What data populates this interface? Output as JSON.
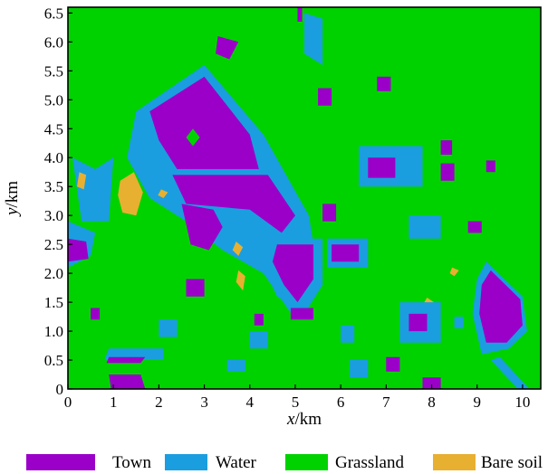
{
  "chart_data": {
    "type": "heatmap",
    "title": "",
    "x_axis": {
      "label_var": "x",
      "label_unit": "/km",
      "range": [
        0,
        10.4
      ],
      "ticks": [
        0,
        1,
        2,
        3,
        4,
        5,
        6,
        7,
        8,
        9,
        10
      ]
    },
    "y_axis": {
      "label_var": "y",
      "label_unit": "/km",
      "range": [
        0,
        6.6
      ],
      "ticks": [
        0,
        0.5,
        1.0,
        1.5,
        2.0,
        2.5,
        3.0,
        3.5,
        4.0,
        4.5,
        5.0,
        5.5,
        6.0,
        6.5
      ],
      "tick_labels": [
        "0",
        "0.5",
        "1.0",
        "1.5",
        "2.0",
        "2.5",
        "3.0",
        "3.5",
        "4.0",
        "4.5",
        "5.0",
        "5.5",
        "6.0",
        "6.5"
      ]
    },
    "background_class": "Grassland",
    "classes": [
      {
        "name": "Town",
        "color": "#9b00c8"
      },
      {
        "name": "Water",
        "color": "#1a9ee0"
      },
      {
        "name": "Grassland",
        "color": "#00d200"
      },
      {
        "name": "Bare soil",
        "color": "#e8b030"
      }
    ],
    "legend_position": "bottom",
    "regions": [
      {
        "class": "Water",
        "points": [
          [
            1.5,
            4.8
          ],
          [
            3.0,
            5.6
          ],
          [
            4.3,
            4.4
          ],
          [
            5.3,
            3.0
          ],
          [
            5.5,
            2.0
          ],
          [
            5.0,
            1.2
          ],
          [
            4.3,
            2.0
          ],
          [
            3.4,
            2.4
          ],
          [
            2.6,
            2.9
          ],
          [
            1.8,
            3.3
          ],
          [
            1.3,
            4.0
          ]
        ]
      },
      {
        "class": "Town",
        "points": [
          [
            1.8,
            4.8
          ],
          [
            3.0,
            5.4
          ],
          [
            4.0,
            4.4
          ],
          [
            4.2,
            3.8
          ],
          [
            2.4,
            3.8
          ],
          [
            2.0,
            4.3
          ]
        ]
      },
      {
        "class": "Town",
        "points": [
          [
            2.3,
            3.7
          ],
          [
            4.4,
            3.7
          ],
          [
            5.0,
            3.0
          ],
          [
            4.7,
            2.7
          ],
          [
            4.0,
            3.1
          ],
          [
            2.6,
            3.2
          ]
        ]
      },
      {
        "class": "Grassland",
        "points": [
          [
            2.75,
            4.5
          ],
          [
            2.9,
            4.35
          ],
          [
            2.75,
            4.2
          ],
          [
            2.6,
            4.35
          ]
        ]
      },
      {
        "class": "Town",
        "points": [
          [
            2.5,
            3.2
          ],
          [
            3.2,
            3.1
          ],
          [
            3.4,
            2.8
          ],
          [
            3.1,
            2.4
          ],
          [
            2.7,
            2.5
          ]
        ]
      },
      {
        "class": "Water",
        "points": [
          [
            4.4,
            2.6
          ],
          [
            5.6,
            2.6
          ],
          [
            5.6,
            1.8
          ],
          [
            5.2,
            1.3
          ],
          [
            4.6,
            1.6
          ],
          [
            4.3,
            2.1
          ]
        ]
      },
      {
        "class": "Town",
        "points": [
          [
            4.6,
            2.5
          ],
          [
            5.4,
            2.5
          ],
          [
            5.4,
            1.9
          ],
          [
            5.05,
            1.5
          ],
          [
            4.75,
            1.8
          ],
          [
            4.5,
            2.2
          ]
        ]
      },
      {
        "class": "Water",
        "points": [
          [
            9.2,
            2.2
          ],
          [
            10.0,
            1.6
          ],
          [
            10.1,
            1.0
          ],
          [
            9.7,
            0.7
          ],
          [
            9.1,
            0.6
          ],
          [
            8.9,
            1.3
          ],
          [
            9.0,
            1.9
          ]
        ]
      },
      {
        "class": "Town",
        "points": [
          [
            9.3,
            2.05
          ],
          [
            9.95,
            1.55
          ],
          [
            10.0,
            1.1
          ],
          [
            9.65,
            0.8
          ],
          [
            9.2,
            0.8
          ],
          [
            9.05,
            1.3
          ],
          [
            9.1,
            1.8
          ]
        ]
      },
      {
        "class": "Water",
        "points": [
          [
            9.3,
            0.5
          ],
          [
            9.9,
            0.0
          ],
          [
            10.15,
            0.0
          ],
          [
            9.5,
            0.55
          ]
        ]
      },
      {
        "class": "Water",
        "points": [
          [
            0.0,
            2.9
          ],
          [
            0.6,
            2.7
          ],
          [
            0.5,
            2.3
          ],
          [
            0.0,
            2.1
          ]
        ]
      },
      {
        "class": "Town",
        "points": [
          [
            0.0,
            2.6
          ],
          [
            0.4,
            2.55
          ],
          [
            0.45,
            2.25
          ],
          [
            0.0,
            2.2
          ]
        ]
      },
      {
        "class": "Water",
        "points": [
          [
            0.9,
            0.7
          ],
          [
            2.1,
            0.7
          ],
          [
            2.1,
            0.5
          ],
          [
            0.8,
            0.5
          ]
        ]
      },
      {
        "class": "Town",
        "points": [
          [
            0.9,
            0.55
          ],
          [
            1.7,
            0.55
          ],
          [
            1.6,
            0.45
          ],
          [
            0.85,
            0.45
          ]
        ]
      },
      {
        "class": "Town",
        "points": [
          [
            0.9,
            0.25
          ],
          [
            1.6,
            0.25
          ],
          [
            1.7,
            0.0
          ],
          [
            0.95,
            0.0
          ]
        ]
      },
      {
        "class": "Water",
        "points": [
          [
            0.1,
            4.0
          ],
          [
            0.6,
            3.8
          ],
          [
            1.0,
            4.0
          ],
          [
            0.9,
            2.9
          ],
          [
            0.3,
            2.9
          ]
        ]
      },
      {
        "class": "Bare soil",
        "points": [
          [
            1.15,
            3.6
          ],
          [
            1.45,
            3.75
          ],
          [
            1.65,
            3.4
          ],
          [
            1.5,
            3.0
          ],
          [
            1.2,
            3.05
          ],
          [
            1.1,
            3.35
          ]
        ]
      },
      {
        "class": "Bare soil",
        "points": [
          [
            0.25,
            3.75
          ],
          [
            0.4,
            3.7
          ],
          [
            0.35,
            3.45
          ],
          [
            0.2,
            3.5
          ]
        ]
      },
      {
        "class": "Bare soil",
        "points": [
          [
            3.7,
            2.55
          ],
          [
            3.85,
            2.45
          ],
          [
            3.75,
            2.3
          ],
          [
            3.62,
            2.4
          ]
        ]
      },
      {
        "class": "Bare soil",
        "points": [
          [
            3.75,
            2.05
          ],
          [
            3.9,
            1.95
          ],
          [
            3.85,
            1.7
          ],
          [
            3.7,
            1.85
          ]
        ]
      },
      {
        "class": "Bare soil",
        "points": [
          [
            7.9,
            1.58
          ],
          [
            8.05,
            1.5
          ],
          [
            7.95,
            1.4
          ],
          [
            7.8,
            1.45
          ]
        ]
      },
      {
        "class": "Bare soil",
        "points": [
          [
            8.45,
            2.1
          ],
          [
            8.6,
            2.05
          ],
          [
            8.5,
            1.95
          ],
          [
            8.4,
            2.0
          ]
        ]
      },
      {
        "class": "Bare soil",
        "points": [
          [
            2.05,
            3.45
          ],
          [
            2.2,
            3.4
          ],
          [
            2.1,
            3.3
          ],
          [
            1.98,
            3.35
          ]
        ]
      },
      {
        "class": "Town",
        "points": [
          [
            3.3,
            6.1
          ],
          [
            3.75,
            6.0
          ],
          [
            3.55,
            5.7
          ],
          [
            3.25,
            5.8
          ]
        ]
      },
      {
        "class": "Water",
        "points": [
          [
            5.2,
            6.5
          ],
          [
            5.6,
            6.4
          ],
          [
            5.6,
            5.6
          ],
          [
            5.2,
            5.8
          ]
        ]
      },
      {
        "class": "Town",
        "points": [
          [
            5.05,
            6.6
          ],
          [
            5.15,
            6.6
          ],
          [
            5.15,
            6.35
          ],
          [
            5.05,
            6.35
          ]
        ]
      },
      {
        "class": "Town",
        "points": [
          [
            6.8,
            5.4
          ],
          [
            7.1,
            5.4
          ],
          [
            7.1,
            5.15
          ],
          [
            6.8,
            5.15
          ]
        ]
      },
      {
        "class": "Town",
        "points": [
          [
            5.5,
            5.2
          ],
          [
            5.8,
            5.2
          ],
          [
            5.8,
            4.9
          ],
          [
            5.5,
            4.9
          ]
        ]
      },
      {
        "class": "Water",
        "points": [
          [
            6.4,
            4.2
          ],
          [
            7.8,
            4.2
          ],
          [
            7.8,
            3.5
          ],
          [
            6.4,
            3.5
          ]
        ]
      },
      {
        "class": "Town",
        "points": [
          [
            6.6,
            4.0
          ],
          [
            7.2,
            4.0
          ],
          [
            7.2,
            3.65
          ],
          [
            6.6,
            3.65
          ]
        ]
      },
      {
        "class": "Town",
        "points": [
          [
            8.2,
            4.3
          ],
          [
            8.45,
            4.3
          ],
          [
            8.45,
            4.05
          ],
          [
            8.2,
            4.05
          ]
        ]
      },
      {
        "class": "Town",
        "points": [
          [
            8.2,
            3.9
          ],
          [
            8.5,
            3.9
          ],
          [
            8.5,
            3.6
          ],
          [
            8.2,
            3.6
          ]
        ]
      },
      {
        "class": "Town",
        "points": [
          [
            9.2,
            3.95
          ],
          [
            9.4,
            3.95
          ],
          [
            9.4,
            3.75
          ],
          [
            9.2,
            3.75
          ]
        ]
      },
      {
        "class": "Water",
        "points": [
          [
            5.7,
            2.6
          ],
          [
            6.6,
            2.6
          ],
          [
            6.6,
            2.1
          ],
          [
            5.7,
            2.1
          ]
        ]
      },
      {
        "class": "Town",
        "points": [
          [
            5.8,
            2.5
          ],
          [
            6.4,
            2.5
          ],
          [
            6.4,
            2.2
          ],
          [
            5.8,
            2.2
          ]
        ]
      },
      {
        "class": "Town",
        "points": [
          [
            4.9,
            1.4
          ],
          [
            5.4,
            1.4
          ],
          [
            5.4,
            1.2
          ],
          [
            4.9,
            1.2
          ]
        ]
      },
      {
        "class": "Water",
        "points": [
          [
            7.3,
            1.5
          ],
          [
            8.2,
            1.5
          ],
          [
            8.2,
            0.8
          ],
          [
            7.3,
            0.8
          ]
        ]
      },
      {
        "class": "Town",
        "points": [
          [
            7.5,
            1.3
          ],
          [
            7.9,
            1.3
          ],
          [
            7.9,
            1.0
          ],
          [
            7.5,
            1.0
          ]
        ]
      },
      {
        "class": "Water",
        "points": [
          [
            8.5,
            1.25
          ],
          [
            8.7,
            1.25
          ],
          [
            8.7,
            1.05
          ],
          [
            8.5,
            1.05
          ]
        ]
      },
      {
        "class": "Town",
        "points": [
          [
            2.6,
            1.9
          ],
          [
            3.0,
            1.9
          ],
          [
            3.0,
            1.6
          ],
          [
            2.6,
            1.6
          ]
        ]
      },
      {
        "class": "Water",
        "points": [
          [
            4.0,
            1.0
          ],
          [
            4.4,
            1.0
          ],
          [
            4.4,
            0.7
          ],
          [
            4.0,
            0.7
          ]
        ]
      },
      {
        "class": "Town",
        "points": [
          [
            4.1,
            1.3
          ],
          [
            4.3,
            1.3
          ],
          [
            4.3,
            1.1
          ],
          [
            4.1,
            1.1
          ]
        ]
      },
      {
        "class": "Water",
        "points": [
          [
            6.0,
            1.1
          ],
          [
            6.3,
            1.1
          ],
          [
            6.3,
            0.8
          ],
          [
            6.0,
            0.8
          ]
        ]
      },
      {
        "class": "Town",
        "points": [
          [
            7.8,
            0.2
          ],
          [
            8.2,
            0.2
          ],
          [
            8.2,
            0.0
          ],
          [
            7.8,
            0.0
          ]
        ]
      },
      {
        "class": "Water",
        "points": [
          [
            6.2,
            0.5
          ],
          [
            6.6,
            0.5
          ],
          [
            6.6,
            0.2
          ],
          [
            6.2,
            0.2
          ]
        ]
      },
      {
        "class": "Water",
        "points": [
          [
            2.0,
            1.2
          ],
          [
            2.4,
            1.2
          ],
          [
            2.4,
            0.9
          ],
          [
            2.0,
            0.9
          ]
        ]
      },
      {
        "class": "Town",
        "points": [
          [
            0.5,
            1.4
          ],
          [
            0.7,
            1.4
          ],
          [
            0.7,
            1.2
          ],
          [
            0.5,
            1.2
          ]
        ]
      },
      {
        "class": "Town",
        "points": [
          [
            7.0,
            0.55
          ],
          [
            7.3,
            0.55
          ],
          [
            7.3,
            0.3
          ],
          [
            7.0,
            0.3
          ]
        ]
      },
      {
        "class": "Water",
        "points": [
          [
            3.5,
            0.5
          ],
          [
            3.9,
            0.5
          ],
          [
            3.9,
            0.3
          ],
          [
            3.5,
            0.3
          ]
        ]
      },
      {
        "class": "Town",
        "points": [
          [
            8.8,
            2.9
          ],
          [
            9.1,
            2.9
          ],
          [
            9.1,
            2.7
          ],
          [
            8.8,
            2.7
          ]
        ]
      },
      {
        "class": "Water",
        "points": [
          [
            7.5,
            3.0
          ],
          [
            8.2,
            3.0
          ],
          [
            8.2,
            2.6
          ],
          [
            7.5,
            2.6
          ]
        ]
      },
      {
        "class": "Town",
        "points": [
          [
            5.6,
            3.2
          ],
          [
            5.9,
            3.2
          ],
          [
            5.9,
            2.9
          ],
          [
            5.6,
            2.9
          ]
        ]
      }
    ]
  }
}
